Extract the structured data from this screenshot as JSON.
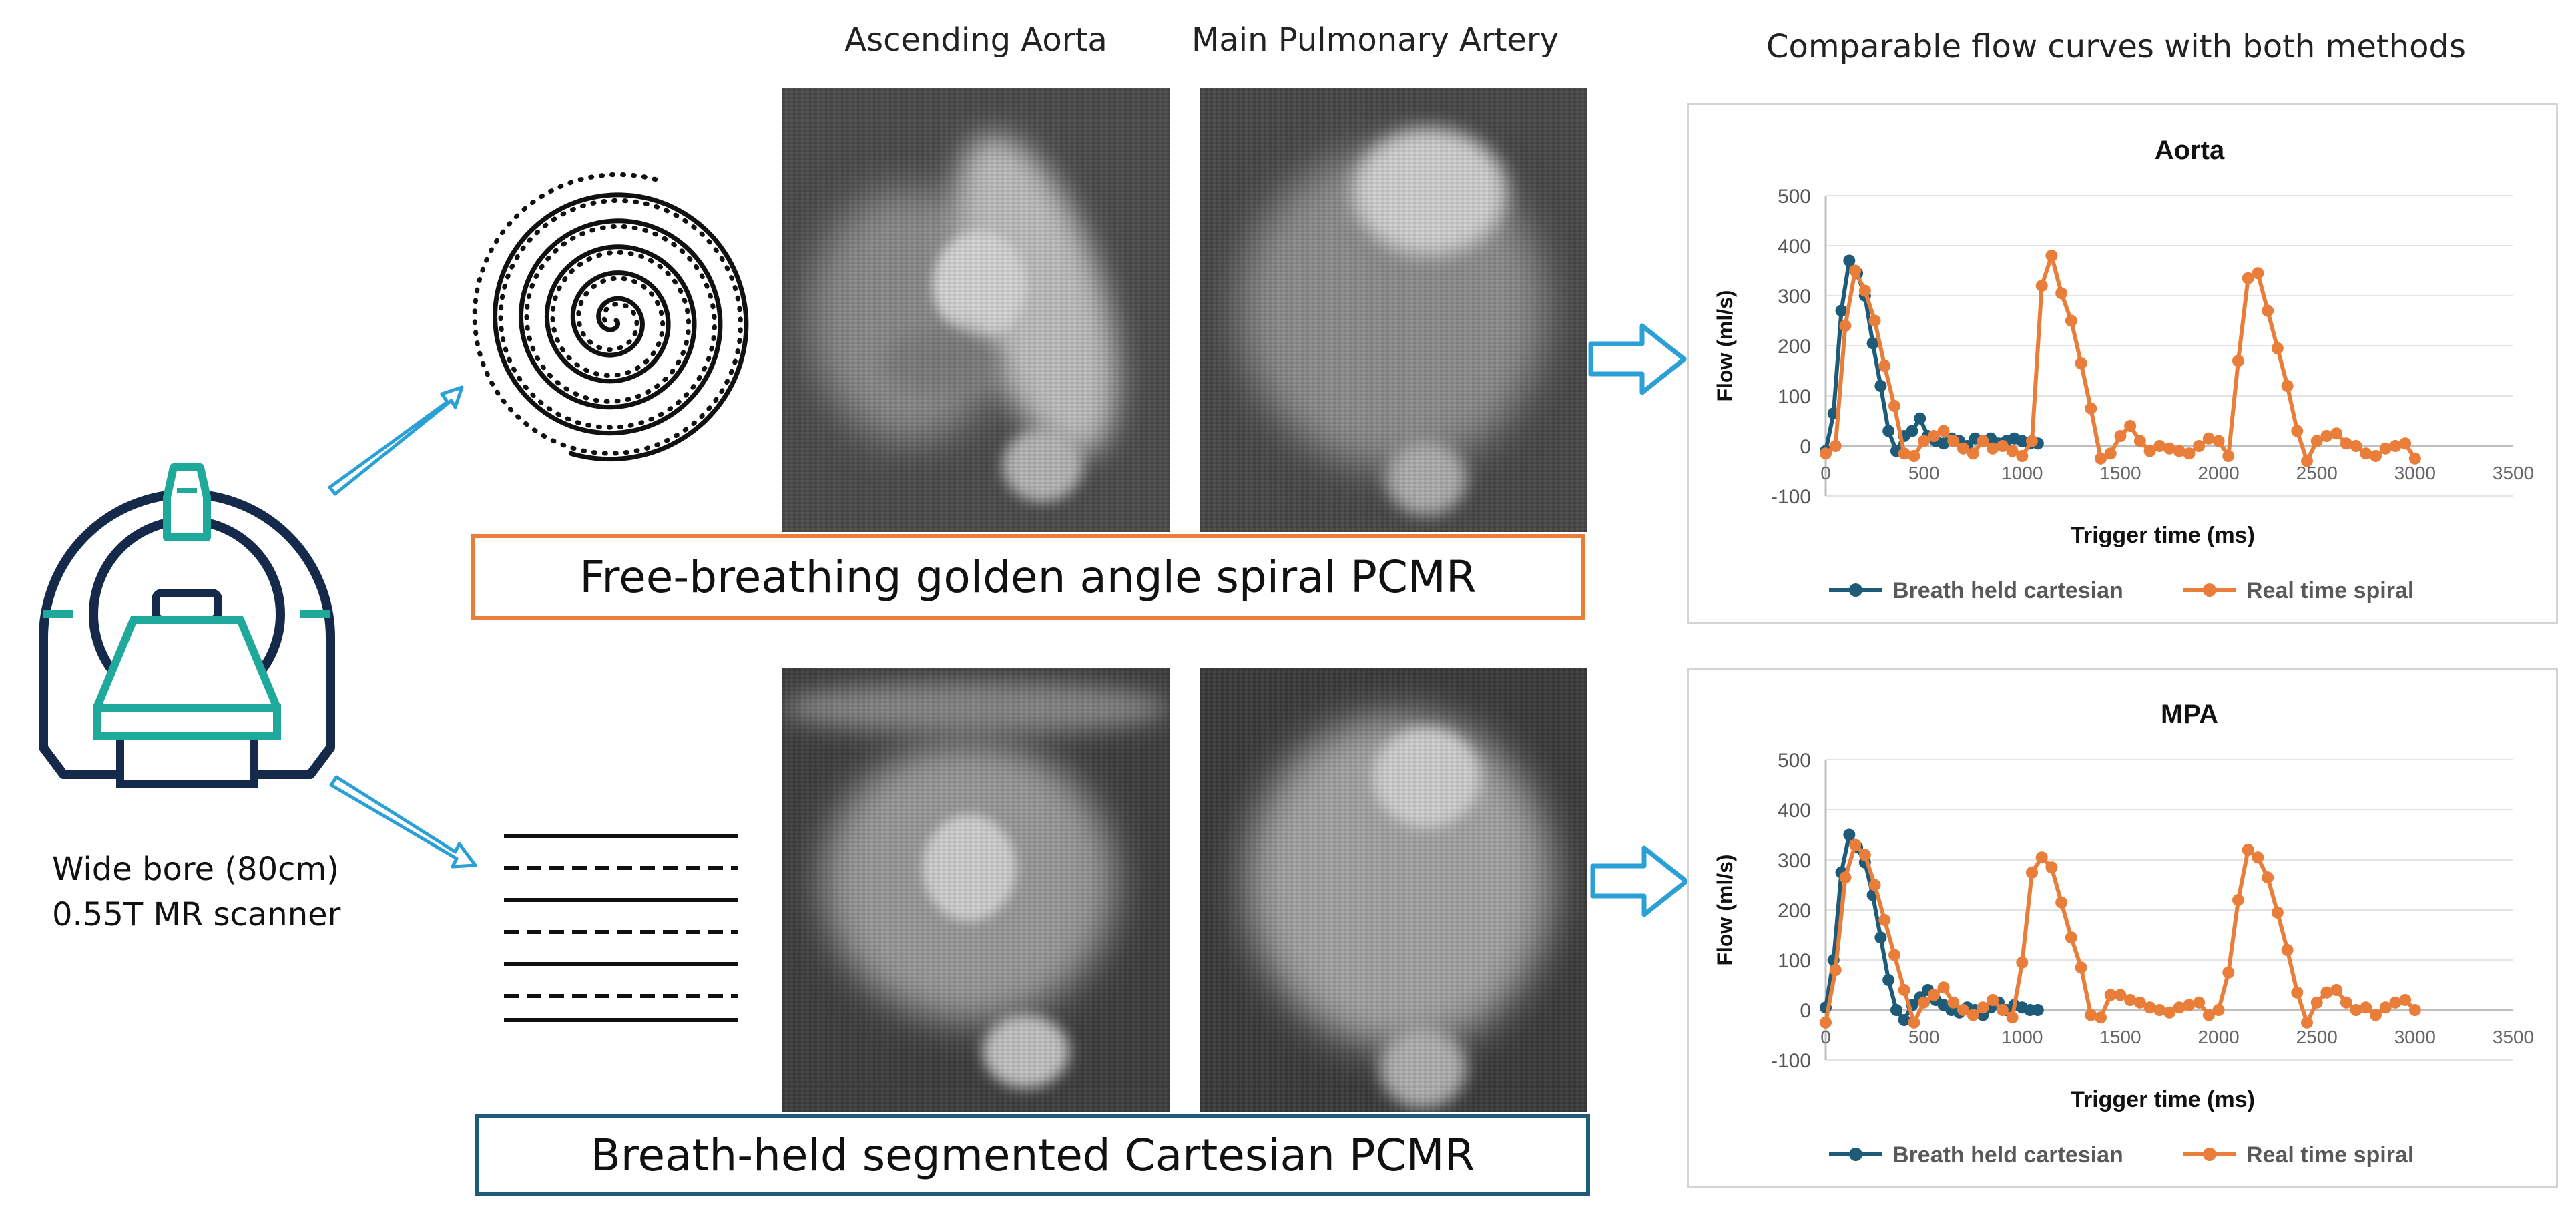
{
  "labels": {
    "ascending_aorta": "Ascending Aorta",
    "main_pulmonary_artery": "Main Pulmonary Artery",
    "comparable": "Comparable flow curves with both methods",
    "spiral_method": "Free-breathing golden angle spiral PCMR",
    "cartesian_method": "Breath-held segmented Cartesian PCMR",
    "scanner_line1": "Wide bore (80cm)",
    "scanner_line2": "0.55T MR scanner"
  },
  "colors": {
    "orange": "#e87e3a",
    "dark_blue": "#1d5b79",
    "teal": "#1fa99b",
    "navy": "#15294a",
    "arrow_blue": "#2aa0d6"
  },
  "chart_data": [
    {
      "type": "line",
      "title": "Aorta",
      "xlabel": "Trigger time (ms)",
      "ylabel": "Flow (ml/s)",
      "xlim": [
        0,
        3500
      ],
      "ylim": [
        -100,
        500
      ],
      "xticks": [
        0,
        500,
        1000,
        1500,
        2000,
        2500,
        3000,
        3500
      ],
      "yticks": [
        -100,
        0,
        100,
        200,
        300,
        400,
        500
      ],
      "grid": true,
      "legend": "bottom",
      "series": [
        {
          "name": "Breath held cartesian",
          "color": "#1d5b79",
          "x": [
            0,
            40,
            80,
            120,
            160,
            200,
            240,
            280,
            320,
            360,
            400,
            440,
            480,
            520,
            560,
            600,
            640,
            680,
            720,
            760,
            800,
            840,
            880,
            920,
            960,
            1000,
            1040,
            1080
          ],
          "y": [
            -10,
            65,
            270,
            370,
            345,
            300,
            205,
            120,
            30,
            -10,
            20,
            30,
            55,
            20,
            10,
            5,
            15,
            10,
            0,
            15,
            10,
            15,
            5,
            10,
            15,
            10,
            5,
            5
          ]
        },
        {
          "name": "Real time spiral",
          "color": "#e87e3a",
          "x": [
            0,
            50,
            100,
            150,
            200,
            250,
            300,
            350,
            400,
            450,
            500,
            550,
            600,
            650,
            700,
            750,
            800,
            850,
            900,
            950,
            1000,
            1050,
            1100,
            1150,
            1200,
            1250,
            1300,
            1350,
            1400,
            1450,
            1500,
            1550,
            1600,
            1650,
            1700,
            1750,
            1800,
            1850,
            1900,
            1950,
            2000,
            2050,
            2100,
            2150,
            2200,
            2250,
            2300,
            2350,
            2400,
            2450,
            2500,
            2550,
            2600,
            2650,
            2700,
            2750,
            2800,
            2850,
            2900,
            2950,
            3000
          ],
          "y": [
            -15,
            0,
            240,
            350,
            310,
            250,
            160,
            80,
            -15,
            -20,
            10,
            20,
            30,
            10,
            -5,
            -15,
            10,
            -5,
            0,
            -10,
            -20,
            10,
            320,
            380,
            305,
            250,
            165,
            75,
            -25,
            -15,
            20,
            40,
            10,
            -10,
            0,
            -5,
            -10,
            -15,
            0,
            15,
            10,
            -20,
            170,
            335,
            345,
            270,
            195,
            120,
            30,
            -30,
            10,
            20,
            25,
            5,
            0,
            -15,
            -20,
            -5,
            0,
            5,
            -25
          ]
        }
      ]
    },
    {
      "type": "line",
      "title": "MPA",
      "xlabel": "Trigger time (ms)",
      "ylabel": "Flow (ml/s)",
      "xlim": [
        0,
        3500
      ],
      "ylim": [
        -100,
        500
      ],
      "xticks": [
        0,
        500,
        1000,
        1500,
        2000,
        2500,
        3000,
        3500
      ],
      "yticks": [
        -100,
        0,
        100,
        200,
        300,
        400,
        500
      ],
      "grid": true,
      "legend": "bottom",
      "series": [
        {
          "name": "Breath held cartesian",
          "color": "#1d5b79",
          "x": [
            0,
            40,
            80,
            120,
            160,
            200,
            240,
            280,
            320,
            360,
            400,
            440,
            480,
            520,
            560,
            600,
            640,
            680,
            720,
            760,
            800,
            840,
            880,
            920,
            960,
            1000,
            1040,
            1080
          ],
          "y": [
            5,
            100,
            275,
            350,
            325,
            295,
            230,
            145,
            60,
            0,
            -20,
            10,
            25,
            40,
            20,
            10,
            0,
            -5,
            5,
            0,
            -10,
            5,
            15,
            0,
            10,
            5,
            0,
            0
          ]
        },
        {
          "name": "Real time spiral",
          "color": "#e87e3a",
          "x": [
            0,
            50,
            100,
            150,
            200,
            250,
            300,
            350,
            400,
            450,
            500,
            550,
            600,
            650,
            700,
            750,
            800,
            850,
            900,
            950,
            1000,
            1050,
            1100,
            1150,
            1200,
            1250,
            1300,
            1350,
            1400,
            1450,
            1500,
            1550,
            1600,
            1650,
            1700,
            1750,
            1800,
            1850,
            1900,
            1950,
            2000,
            2050,
            2100,
            2150,
            2200,
            2250,
            2300,
            2350,
            2400,
            2450,
            2500,
            2550,
            2600,
            2650,
            2700,
            2750,
            2800,
            2850,
            2900,
            2950,
            3000
          ],
          "y": [
            -25,
            80,
            265,
            330,
            310,
            250,
            180,
            110,
            40,
            -25,
            15,
            30,
            45,
            15,
            0,
            -10,
            5,
            20,
            0,
            -15,
            95,
            275,
            305,
            285,
            215,
            145,
            85,
            -10,
            -15,
            30,
            30,
            20,
            15,
            5,
            0,
            -5,
            5,
            10,
            15,
            -10,
            0,
            75,
            220,
            320,
            305,
            265,
            195,
            120,
            35,
            -25,
            15,
            35,
            40,
            15,
            0,
            5,
            -10,
            5,
            15,
            20,
            0
          ]
        }
      ]
    }
  ]
}
